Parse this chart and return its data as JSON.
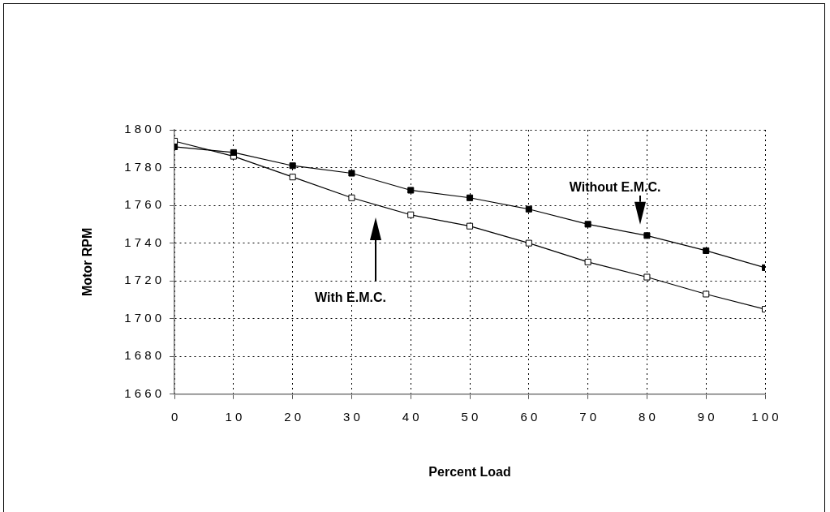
{
  "chart_data": {
    "type": "line",
    "xlabel": "Percent Load",
    "ylabel": "Motor RPM",
    "x": [
      0,
      10,
      20,
      30,
      40,
      50,
      60,
      70,
      80,
      90,
      100
    ],
    "series": [
      {
        "color": "#000000",
        "values": [
          1791,
          1788,
          1781,
          1777,
          1768,
          1764,
          1758,
          1750,
          1744,
          1736,
          1727
        ]
      },
      {
        "color": "#000000",
        "values": [
          1794,
          1786,
          1775,
          1764,
          1755,
          1749,
          1740,
          1730,
          1722,
          1713,
          1705
        ]
      }
    ],
    "xlim": [
      0,
      100
    ],
    "xticks": [
      0,
      10,
      20,
      30,
      40,
      50,
      60,
      70,
      80,
      90,
      100
    ],
    "ylim": [
      1660,
      1800
    ],
    "yticks": [
      1660,
      1680,
      1700,
      1720,
      1740,
      1760,
      1780,
      1800
    ],
    "grid": true,
    "marker": "square",
    "line_style": "solid",
    "legend": false,
    "annotations": [
      "With E.M.C.",
      "Without E.M.C."
    ]
  }
}
